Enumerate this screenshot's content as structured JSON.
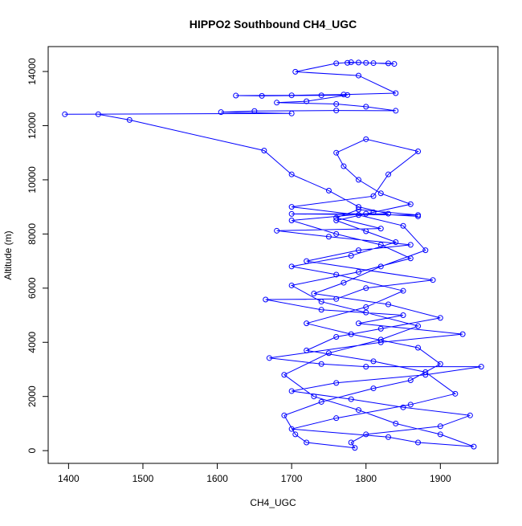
{
  "chart_data": {
    "type": "line",
    "markers": "open-circle",
    "color": "#0000ff",
    "title": "HIPPO2 Southbound CH4_UGC",
    "x_label": "CH4_UGC",
    "y_label": "Altitude (m)",
    "xlim": [
      1372.6,
      1977.4
    ],
    "ylim": [
      -470,
      14920
    ],
    "xticks": [
      1400,
      1500,
      1600,
      1700,
      1800,
      1900
    ],
    "yticks": [
      0,
      2000,
      4000,
      6000,
      8000,
      10000,
      12000,
      14000
    ],
    "grid": false,
    "x": [
      1775,
      1790,
      1810,
      1830,
      1838,
      1800,
      1780,
      1760,
      1705,
      1790,
      1840,
      1770,
      1700,
      1625,
      1660,
      1740,
      1775,
      1720,
      1680,
      1760,
      1800,
      1840,
      1760,
      1650,
      1605,
      1700,
      1395,
      1440,
      1482,
      1663,
      1700,
      1750,
      1790,
      1830,
      1700,
      1870,
      1790,
      1760,
      1820,
      1680,
      1750,
      1860,
      1790,
      1720,
      1890,
      1800,
      1760,
      1665,
      1740,
      1850,
      1790,
      1930,
      1820,
      1670,
      1740,
      1800,
      1955,
      1880,
      1760,
      1700,
      1780,
      1850,
      1940,
      1900,
      1800,
      1780,
      1785,
      1720,
      1705,
      1690,
      1740,
      1810,
      1860,
      1900,
      1870,
      1780,
      1720,
      1800,
      1850,
      1760,
      1700,
      1780,
      1840,
      1800,
      1760,
      1810,
      1860,
      1820,
      1790,
      1770,
      1760,
      1800,
      1870,
      1830,
      1810,
      1700,
      1790,
      1850,
      1880,
      1820,
      1770,
      1730,
      1830,
      1900,
      1820,
      1760,
      1720,
      1810,
      1880,
      1920,
      1860,
      1760,
      1700,
      1830,
      1870,
      1945,
      1900,
      1840,
      1790,
      1730,
      1690,
      1750,
      1820,
      1870,
      1800,
      1740,
      1700,
      1790,
      1860,
      1820,
      1760,
      1700,
      1800,
      1870
    ],
    "y": [
      14320,
      14330,
      14310,
      14300,
      14280,
      14320,
      14340,
      14300,
      13990,
      13850,
      13200,
      13150,
      13120,
      13110,
      13100,
      13120,
      13130,
      12900,
      12850,
      12800,
      12700,
      12550,
      12560,
      12540,
      12500,
      12450,
      12420,
      12420,
      12210,
      11080,
      10200,
      9600,
      9000,
      8750,
      8740,
      8700,
      8900,
      8600,
      8200,
      8120,
      7900,
      7600,
      7400,
      7000,
      6300,
      6000,
      5600,
      5580,
      5200,
      5000,
      4700,
      4300,
      4000,
      3420,
      3200,
      3100,
      3100,
      2800,
      2500,
      2200,
      1900,
      1600,
      1300,
      900,
      600,
      300,
      100,
      300,
      600,
      1300,
      1800,
      2300,
      2600,
      3200,
      3800,
      4300,
      4700,
      5300,
      5900,
      6500,
      6800,
      7200,
      7700,
      8100,
      8500,
      8800,
      9100,
      9500,
      10000,
      10500,
      11000,
      11500,
      11050,
      10200,
      9400,
      9000,
      8700,
      8300,
      7400,
      6800,
      6200,
      5800,
      5400,
      4900,
      4500,
      4200,
      3700,
      3300,
      2900,
      2100,
      1700,
      1200,
      800,
      500,
      300,
      150,
      600,
      1000,
      1500,
      2000,
      2800,
      3600,
      4100,
      4600,
      5100,
      5500,
      6100,
      6600,
      7100,
      7600,
      8000,
      8500,
      8750,
      8650
    ]
  }
}
